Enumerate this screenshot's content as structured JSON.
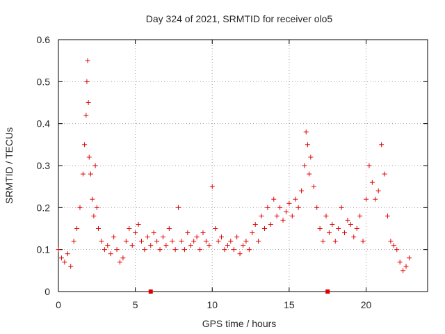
{
  "chart_data": {
    "type": "scatter",
    "title": "Day 324 of 2021, SRMTID for receiver olo5",
    "xlabel": "GPS time / hours",
    "ylabel": "SRMTID / TECUs",
    "xlim": [
      0,
      24
    ],
    "ylim": [
      0,
      0.6
    ],
    "xticks": [
      0,
      5,
      10,
      15,
      20
    ],
    "xtick_labels": [
      "0",
      "5",
      "10",
      "15",
      "20"
    ],
    "yticks": [
      0,
      0.1,
      0.2,
      0.3,
      0.4,
      0.5,
      0.6
    ],
    "ytick_labels": [
      "0",
      "0.1",
      "0.2",
      "0.3",
      "0.4",
      "0.5",
      "0.6"
    ],
    "grid": true,
    "marker": "+",
    "color": "#e00000",
    "baseline_markers_x": [
      6.0,
      17.5
    ],
    "series": [
      {
        "name": "SRMTID",
        "x": [
          0.0,
          0.2,
          0.4,
          0.6,
          0.8,
          1.0,
          1.2,
          1.4,
          1.6,
          1.7,
          1.8,
          1.85,
          1.9,
          1.95,
          2.0,
          2.1,
          2.2,
          2.3,
          2.4,
          2.5,
          2.6,
          2.8,
          3.0,
          3.2,
          3.4,
          3.6,
          3.8,
          4.0,
          4.2,
          4.4,
          4.6,
          4.8,
          5.0,
          5.2,
          5.4,
          5.6,
          5.8,
          6.0,
          6.2,
          6.4,
          6.6,
          6.8,
          7.0,
          7.2,
          7.4,
          7.6,
          7.8,
          8.0,
          8.2,
          8.4,
          8.6,
          8.8,
          9.0,
          9.2,
          9.4,
          9.6,
          9.8,
          10.0,
          10.2,
          10.4,
          10.6,
          10.8,
          11.0,
          11.2,
          11.4,
          11.6,
          11.8,
          12.0,
          12.2,
          12.4,
          12.6,
          12.8,
          13.0,
          13.2,
          13.4,
          13.6,
          13.8,
          14.0,
          14.2,
          14.4,
          14.6,
          14.8,
          15.0,
          15.2,
          15.4,
          15.6,
          15.8,
          16.0,
          16.1,
          16.2,
          16.3,
          16.4,
          16.6,
          16.8,
          17.0,
          17.2,
          17.4,
          17.6,
          17.8,
          18.0,
          18.2,
          18.4,
          18.6,
          18.8,
          19.0,
          19.2,
          19.4,
          19.6,
          19.8,
          20.0,
          20.2,
          20.4,
          20.6,
          20.8,
          21.0,
          21.2,
          21.4,
          21.6,
          21.8,
          22.0,
          22.2,
          22.4,
          22.6,
          22.8
        ],
        "y": [
          0.1,
          0.08,
          0.07,
          0.09,
          0.06,
          0.12,
          0.15,
          0.2,
          0.28,
          0.35,
          0.42,
          0.5,
          0.55,
          0.45,
          0.32,
          0.28,
          0.22,
          0.18,
          0.3,
          0.2,
          0.15,
          0.12,
          0.1,
          0.11,
          0.09,
          0.13,
          0.1,
          0.07,
          0.08,
          0.12,
          0.15,
          0.11,
          0.14,
          0.16,
          0.12,
          0.1,
          0.13,
          0.11,
          0.14,
          0.12,
          0.1,
          0.13,
          0.11,
          0.15,
          0.12,
          0.1,
          0.2,
          0.12,
          0.1,
          0.14,
          0.11,
          0.12,
          0.13,
          0.1,
          0.14,
          0.12,
          0.11,
          0.25,
          0.15,
          0.12,
          0.13,
          0.1,
          0.11,
          0.12,
          0.1,
          0.13,
          0.09,
          0.11,
          0.12,
          0.1,
          0.14,
          0.16,
          0.12,
          0.18,
          0.15,
          0.2,
          0.16,
          0.22,
          0.18,
          0.2,
          0.17,
          0.19,
          0.21,
          0.18,
          0.22,
          0.2,
          0.24,
          0.3,
          0.38,
          0.35,
          0.28,
          0.32,
          0.25,
          0.2,
          0.15,
          0.12,
          0.18,
          0.14,
          0.16,
          0.12,
          0.15,
          0.2,
          0.14,
          0.17,
          0.16,
          0.13,
          0.15,
          0.18,
          0.12,
          0.22,
          0.3,
          0.26,
          0.22,
          0.24,
          0.35,
          0.28,
          0.18,
          0.12,
          0.11,
          0.1,
          0.07,
          0.05,
          0.06,
          0.08
        ]
      }
    ]
  }
}
